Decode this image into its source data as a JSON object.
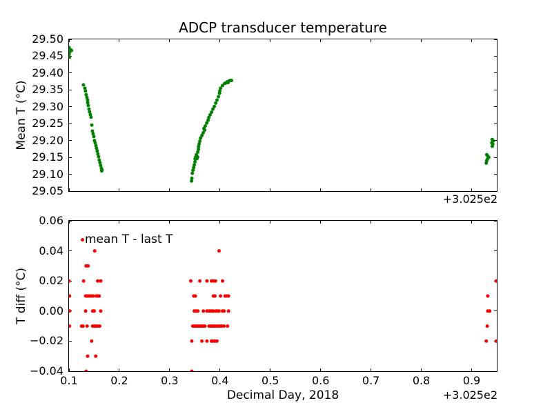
{
  "figure": {
    "title": "ADCP transducer temperature",
    "xlabel": "Decimal Day, 2018",
    "x_offset_text": "+3.025e2",
    "background": "#ffffff",
    "axis_color": "#000000"
  },
  "chart_data": [
    {
      "type": "scatter",
      "title": "ADCP transducer temperature",
      "ylabel": "Mean T (°C)",
      "xlabel": "",
      "x_offset_text": "+3.025e2",
      "x_offset_value": 302.5,
      "xlim": [
        0.1,
        0.95
      ],
      "ylim": [
        29.05,
        29.5
      ],
      "grid": false,
      "xticks": {
        "values": [
          0.1,
          0.2,
          0.3,
          0.4,
          0.5,
          0.6,
          0.7,
          0.8,
          0.9
        ],
        "labels": []
      },
      "yticks": {
        "values": [
          29.5,
          29.45,
          29.4,
          29.35,
          29.3,
          29.25,
          29.2,
          29.15,
          29.1,
          29.05
        ],
        "labels": [
          "29.50",
          "29.45",
          "29.40",
          "29.35",
          "29.30",
          "29.25",
          "29.20",
          "29.15",
          "29.10",
          "29.05"
        ]
      },
      "series": [
        {
          "name": "mean T",
          "color": "#008000",
          "marker": "dot",
          "points": [
            [
              0.1,
              29.476
            ],
            [
              0.103,
              29.469
            ],
            [
              0.105,
              29.467
            ],
            [
              0.101,
              29.461
            ],
            [
              0.1,
              29.455
            ],
            [
              0.101,
              29.447
            ],
            [
              0.1287,
              29.365
            ],
            [
              0.1315,
              29.355
            ],
            [
              0.1328,
              29.347
            ],
            [
              0.1342,
              29.336
            ],
            [
              0.1356,
              29.328
            ],
            [
              0.1369,
              29.32
            ],
            [
              0.1371,
              29.312
            ],
            [
              0.1383,
              29.304
            ],
            [
              0.1397,
              29.293
            ],
            [
              0.141,
              29.285
            ],
            [
              0.1424,
              29.277
            ],
            [
              0.1438,
              29.269
            ],
            [
              0.1452,
              29.246
            ],
            [
              0.1465,
              29.228
            ],
            [
              0.1479,
              29.22
            ],
            [
              0.1493,
              29.212
            ],
            [
              0.1506,
              29.2
            ],
            [
              0.152,
              29.193
            ],
            [
              0.1534,
              29.185
            ],
            [
              0.1547,
              29.177
            ],
            [
              0.1561,
              29.169
            ],
            [
              0.1575,
              29.16
            ],
            [
              0.1588,
              29.152
            ],
            [
              0.1602,
              29.142
            ],
            [
              0.1616,
              29.134
            ],
            [
              0.1629,
              29.126
            ],
            [
              0.1643,
              29.118
            ],
            [
              0.1657,
              29.113
            ],
            [
              0.165,
              29.11
            ],
            [
              0.3435,
              29.08
            ],
            [
              0.3442,
              29.088
            ],
            [
              0.345,
              29.103
            ],
            [
              0.3463,
              29.112
            ],
            [
              0.3477,
              29.12
            ],
            [
              0.349,
              29.128
            ],
            [
              0.3504,
              29.137
            ],
            [
              0.3505,
              29.146
            ],
            [
              0.3517,
              29.151
            ],
            [
              0.354,
              29.146
            ],
            [
              0.3556,
              29.151
            ],
            [
              0.3531,
              29.158
            ],
            [
              0.3558,
              29.166
            ],
            [
              0.3572,
              29.174
            ],
            [
              0.3574,
              29.182
            ],
            [
              0.3585,
              29.19
            ],
            [
              0.3599,
              29.198
            ],
            [
              0.3613,
              29.207
            ],
            [
              0.364,
              29.215
            ],
            [
              0.3667,
              29.223
            ],
            [
              0.3695,
              29.231
            ],
            [
              0.3681,
              29.236
            ],
            [
              0.3708,
              29.243
            ],
            [
              0.3736,
              29.252
            ],
            [
              0.3763,
              29.26
            ],
            [
              0.3777,
              29.268
            ],
            [
              0.3804,
              29.276
            ],
            [
              0.3832,
              29.284
            ],
            [
              0.3859,
              29.293
            ],
            [
              0.3887,
              29.301
            ],
            [
              0.3914,
              29.311
            ],
            [
              0.3941,
              29.32
            ],
            [
              0.3969,
              29.33
            ],
            [
              0.399,
              29.34
            ],
            [
              0.3996,
              29.347
            ],
            [
              0.401,
              29.355
            ],
            [
              0.4051,
              29.363
            ],
            [
              0.4092,
              29.369
            ],
            [
              0.412,
              29.371
            ],
            [
              0.4147,
              29.374
            ],
            [
              0.416,
              29.372
            ],
            [
              0.4174,
              29.376
            ],
            [
              0.4202,
              29.378
            ],
            [
              0.4229,
              29.378
            ],
            [
              0.941,
              29.203
            ],
            [
              0.943,
              29.199
            ],
            [
              0.94,
              29.193
            ],
            [
              0.942,
              29.189
            ],
            [
              0.941,
              29.183
            ],
            [
              0.93,
              29.158
            ],
            [
              0.932,
              29.154
            ],
            [
              0.934,
              29.15
            ],
            [
              0.931,
              29.144
            ],
            [
              0.93,
              29.14
            ],
            [
              0.929,
              29.133
            ]
          ]
        }
      ]
    },
    {
      "type": "scatter",
      "title": "",
      "ylabel": "T diff (°C)",
      "xlabel": "Decimal Day, 2018",
      "x_offset_text": "+3.025e2",
      "x_offset_value": 302.5,
      "xlim": [
        0.1,
        0.95
      ],
      "ylim": [
        -0.04,
        0.06
      ],
      "grid": false,
      "legend_label": "mean T - last T",
      "legend_position": "upper left",
      "xticks": {
        "values": [
          0.1,
          0.2,
          0.3,
          0.4,
          0.5,
          0.6,
          0.7,
          0.8,
          0.9
        ],
        "labels": [
          "0.1",
          "0.2",
          "0.3",
          "0.4",
          "0.5",
          "0.6",
          "0.7",
          "0.8",
          "0.9"
        ]
      },
      "yticks": {
        "values": [
          0.06,
          0.04,
          0.02,
          0.0,
          -0.02,
          -0.04
        ],
        "labels": [
          "0.06",
          "0.04",
          "0.02",
          "0.00",
          "−0.02",
          "−0.04"
        ]
      },
      "series": [
        {
          "name": "mean T - last T",
          "color": "#ff0000",
          "marker": "dot",
          "points": [
            [
              0.151,
              0.04
            ],
            [
              0.134,
              0.03
            ],
            [
              0.138,
              0.03
            ],
            [
              0.1,
              0.02
            ],
            [
              0.129,
              0.02
            ],
            [
              0.157,
              0.02
            ],
            [
              0.163,
              0.02
            ],
            [
              0.101,
              0.01
            ],
            [
              0.133,
              0.01
            ],
            [
              0.136,
              0.01
            ],
            [
              0.139,
              0.01
            ],
            [
              0.142,
              0.01
            ],
            [
              0.145,
              0.01
            ],
            [
              0.148,
              0.01
            ],
            [
              0.154,
              0.01
            ],
            [
              0.157,
              0.01
            ],
            [
              0.16,
              0.01
            ],
            [
              0.101,
              0.0
            ],
            [
              0.133,
              0.0
            ],
            [
              0.147,
              0.0
            ],
            [
              0.15,
              0.0
            ],
            [
              0.163,
              0.0
            ],
            [
              0.101,
              -0.01
            ],
            [
              0.125,
              -0.01
            ],
            [
              0.128,
              -0.01
            ],
            [
              0.136,
              -0.01
            ],
            [
              0.147,
              -0.01
            ],
            [
              0.15,
              -0.01
            ],
            [
              0.153,
              -0.01
            ],
            [
              0.157,
              -0.01
            ],
            [
              0.161,
              -0.01
            ],
            [
              0.145,
              -0.02
            ],
            [
              0.137,
              -0.03
            ],
            [
              0.153,
              -0.03
            ],
            [
              0.134,
              -0.04
            ],
            [
              0.398,
              0.04
            ],
            [
              0.342,
              0.02
            ],
            [
              0.36,
              0.02
            ],
            [
              0.374,
              0.02
            ],
            [
              0.383,
              0.02
            ],
            [
              0.387,
              0.02
            ],
            [
              0.391,
              0.02
            ],
            [
              0.405,
              0.02
            ],
            [
              0.348,
              0.01
            ],
            [
              0.351,
              0.01
            ],
            [
              0.387,
              0.01
            ],
            [
              0.39,
              0.01
            ],
            [
              0.401,
              0.01
            ],
            [
              0.41,
              0.01
            ],
            [
              0.413,
              0.01
            ],
            [
              0.417,
              0.01
            ],
            [
              0.349,
              0.0
            ],
            [
              0.352,
              0.0
            ],
            [
              0.356,
              0.0
            ],
            [
              0.367,
              0.0
            ],
            [
              0.374,
              0.0
            ],
            [
              0.378,
              0.0
            ],
            [
              0.381,
              0.0
            ],
            [
              0.384,
              0.0
            ],
            [
              0.387,
              0.0
            ],
            [
              0.392,
              0.0
            ],
            [
              0.395,
              0.0
            ],
            [
              0.398,
              0.0
            ],
            [
              0.405,
              0.0
            ],
            [
              0.408,
              0.0
            ],
            [
              0.417,
              0.0
            ],
            [
              0.346,
              -0.01
            ],
            [
              0.349,
              -0.01
            ],
            [
              0.352,
              -0.01
            ],
            [
              0.355,
              -0.01
            ],
            [
              0.358,
              -0.01
            ],
            [
              0.361,
              -0.01
            ],
            [
              0.364,
              -0.01
            ],
            [
              0.367,
              -0.01
            ],
            [
              0.37,
              -0.01
            ],
            [
              0.378,
              -0.01
            ],
            [
              0.381,
              -0.01
            ],
            [
              0.384,
              -0.01
            ],
            [
              0.387,
              -0.01
            ],
            [
              0.39,
              -0.01
            ],
            [
              0.394,
              -0.01
            ],
            [
              0.398,
              -0.01
            ],
            [
              0.401,
              -0.01
            ],
            [
              0.404,
              -0.01
            ],
            [
              0.408,
              -0.01
            ],
            [
              0.415,
              -0.01
            ],
            [
              0.344,
              -0.02
            ],
            [
              0.364,
              -0.02
            ],
            [
              0.374,
              -0.02
            ],
            [
              0.383,
              -0.02
            ],
            [
              0.386,
              -0.02
            ],
            [
              0.39,
              -0.02
            ],
            [
              0.394,
              -0.02
            ],
            [
              0.344,
              -0.04
            ],
            [
              0.949,
              0.02
            ],
            [
              0.932,
              0.01
            ],
            [
              0.932,
              0.0
            ],
            [
              0.936,
              0.0
            ],
            [
              0.931,
              -0.01
            ],
            [
              0.929,
              -0.02
            ],
            [
              0.949,
              -0.02
            ]
          ]
        }
      ]
    }
  ]
}
